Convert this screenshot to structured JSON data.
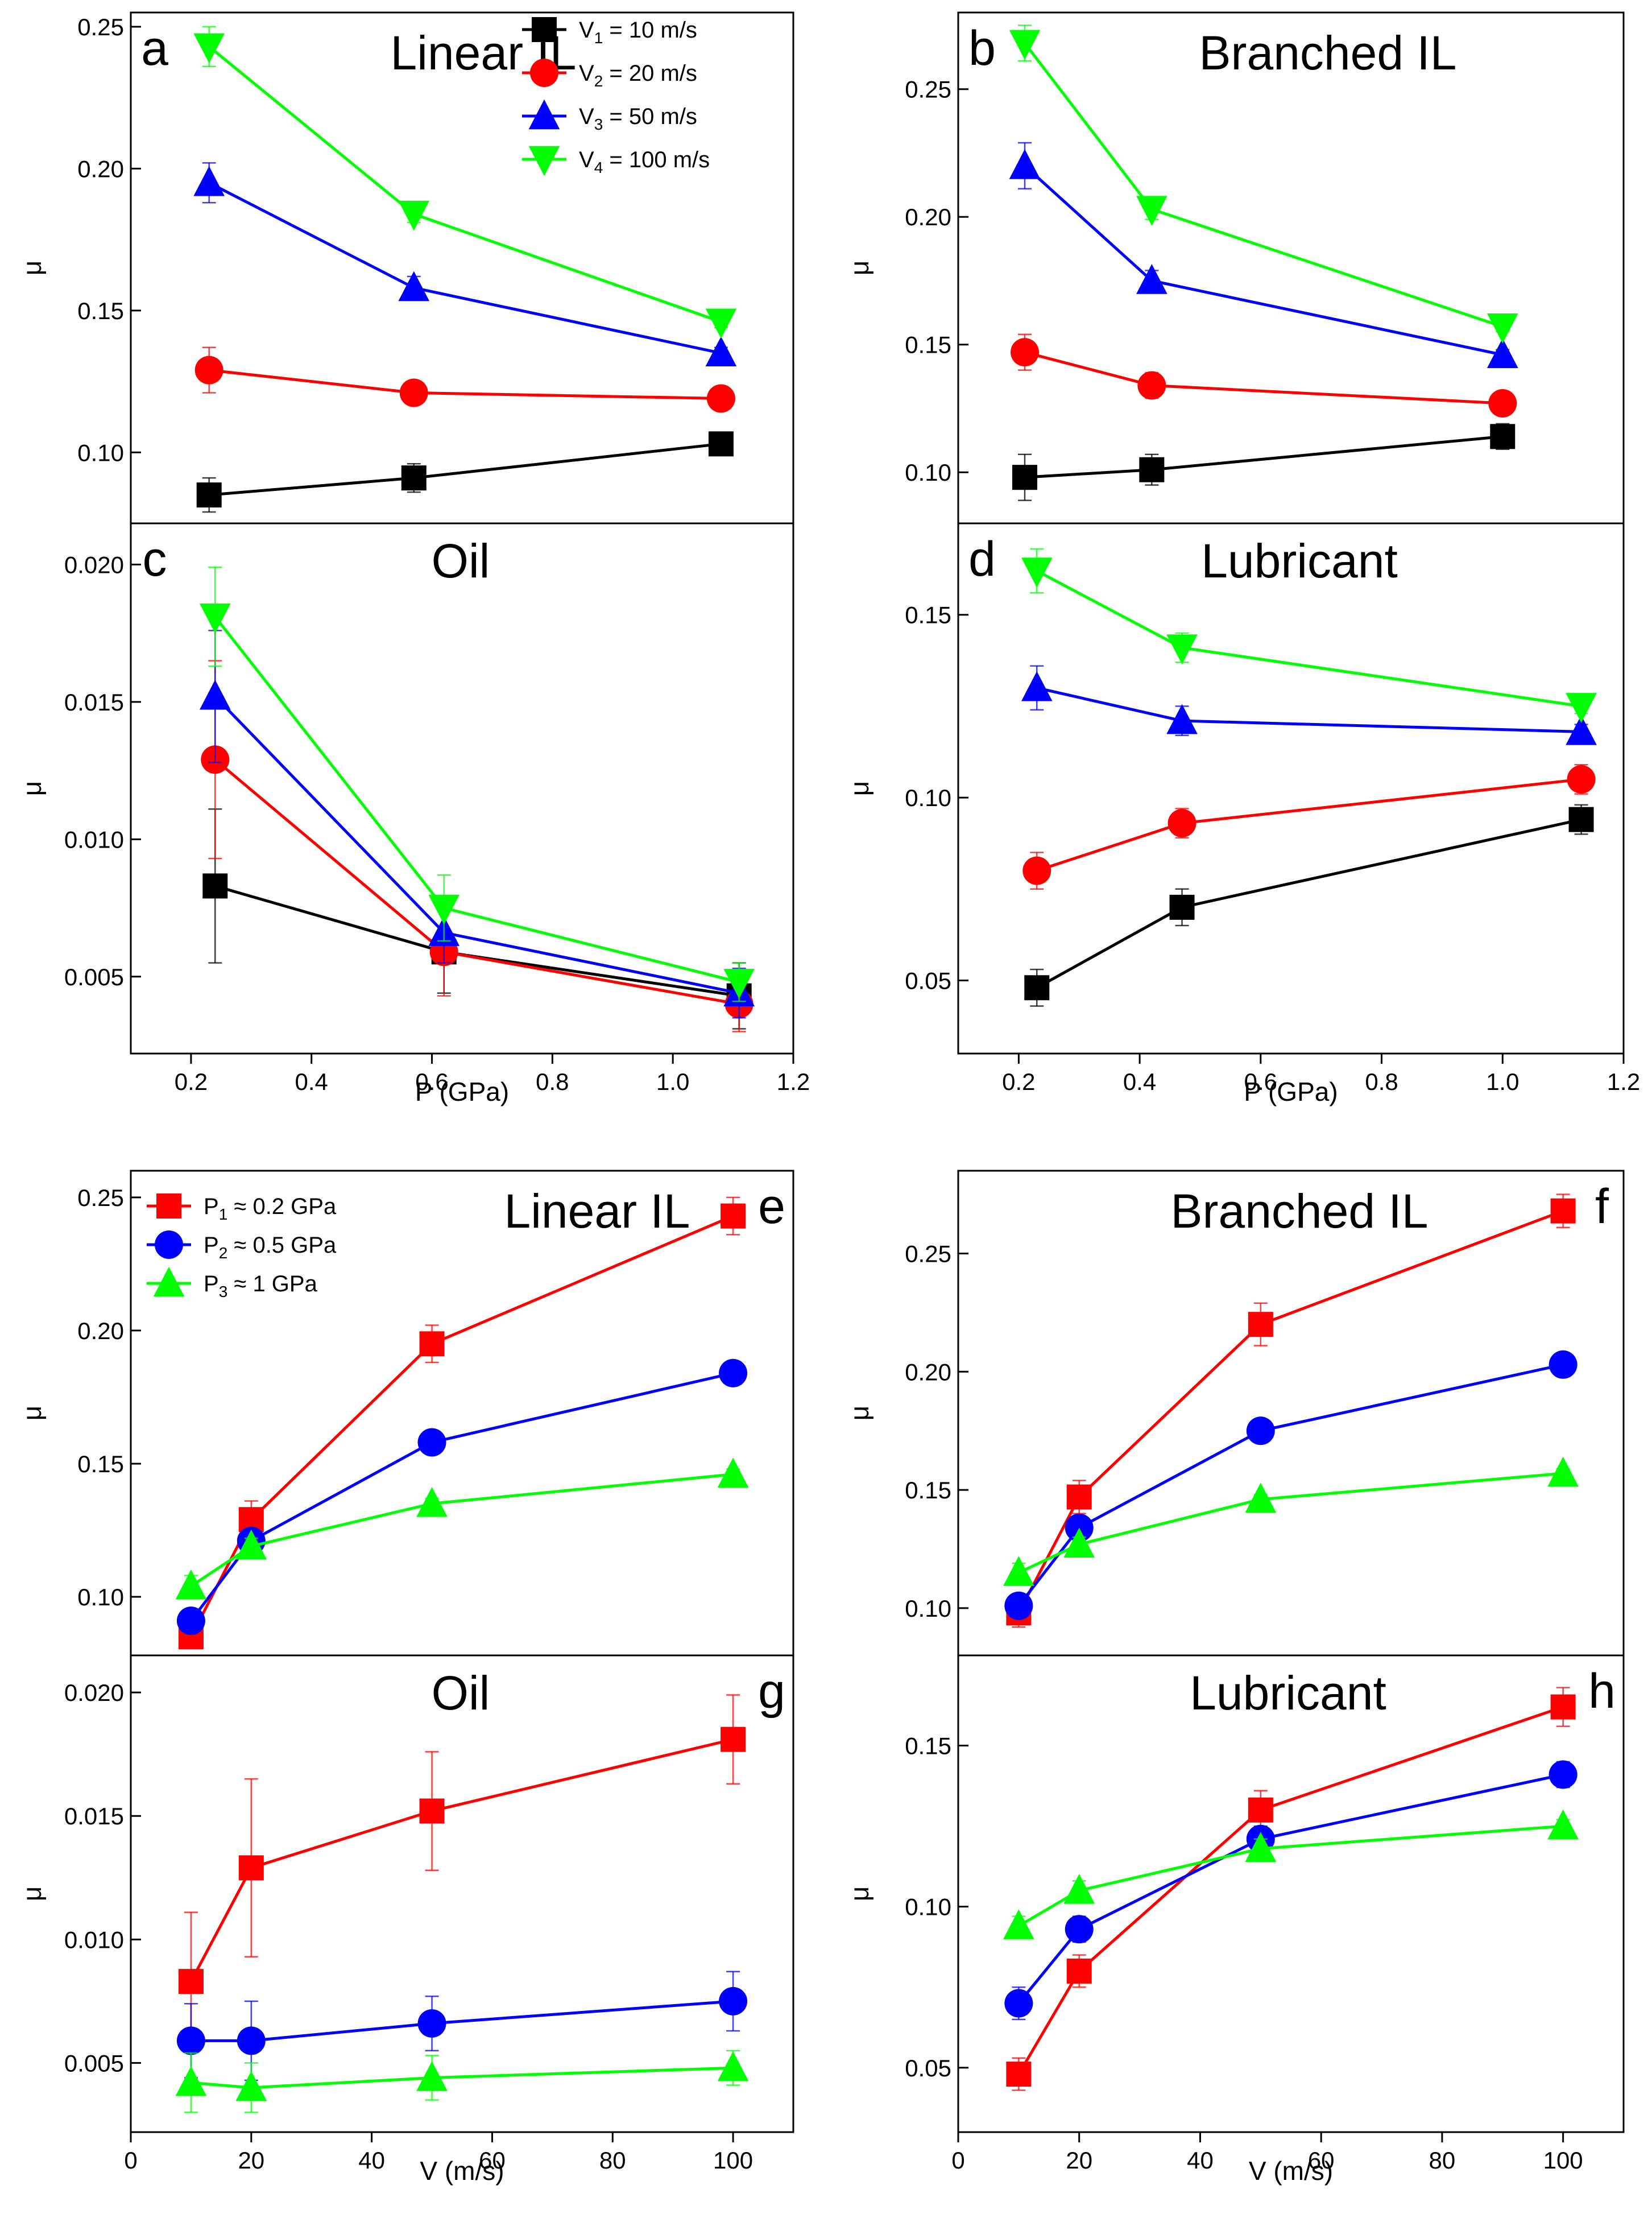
{
  "figure": {
    "mu_symbol": "μ",
    "colors": {
      "black": "#000000",
      "red": "#ff0000",
      "blue": "#0000ff",
      "green": "#00ff00"
    },
    "legend_top": [
      {
        "main": "V",
        "sub": "1",
        "rest": " = 10 m/s",
        "color": "#000000",
        "marker": "square"
      },
      {
        "main": "V",
        "sub": "2",
        "rest": " = 20 m/s",
        "color": "#ff0000",
        "marker": "circle"
      },
      {
        "main": "V",
        "sub": "3",
        "rest": " = 50 m/s",
        "color": "#0000ff",
        "marker": "triangle-up"
      },
      {
        "main": "V",
        "sub": "4",
        "rest": " = 100 m/s",
        "color": "#00ff00",
        "marker": "triangle-down"
      }
    ],
    "legend_bottom": [
      {
        "main": "P",
        "sub": "1",
        "rest": " ≈ 0.2 GPa",
        "color": "#ff0000",
        "marker": "square"
      },
      {
        "main": "P",
        "sub": "2",
        "rest": " ≈ 0.5 GPa",
        "color": "#0000ff",
        "marker": "circle"
      },
      {
        "main": "P",
        "sub": "3",
        "rest": " ≈ 1 GPa",
        "color": "#00ff00",
        "marker": "triangle-up"
      }
    ]
  },
  "chart_data": [
    {
      "panel": "a",
      "title": "Linear IL",
      "type": "line",
      "xlabel": "P (GPa)",
      "ylabel": "μ",
      "xlim": [
        0.1,
        1.2
      ],
      "ylim": [
        0.075,
        0.255
      ],
      "yticks": [
        "0.10",
        "0.15",
        "0.20",
        "0.25"
      ],
      "xticks": [],
      "series": [
        {
          "name": "V1 = 10 m/s",
          "marker": "square",
          "color": "#000000",
          "x": [
            0.23,
            0.57,
            1.08
          ],
          "values": [
            0.085,
            0.091,
            0.103
          ],
          "errors": [
            0.006,
            0.005,
            0.004
          ]
        },
        {
          "name": "V2 = 20 m/s",
          "marker": "circle",
          "color": "#ff0000",
          "x": [
            0.23,
            0.57,
            1.08
          ],
          "values": [
            0.129,
            0.121,
            0.119
          ],
          "errors": [
            0.008,
            0.004,
            0.003
          ]
        },
        {
          "name": "V3 = 50 m/s",
          "marker": "triangle-up",
          "color": "#0000ff",
          "x": [
            0.23,
            0.57,
            1.08
          ],
          "values": [
            0.195,
            0.158,
            0.135
          ],
          "errors": [
            0.007,
            0.004,
            0.002
          ]
        },
        {
          "name": "V4 = 100 m/s",
          "marker": "triangle-down",
          "color": "#00ff00",
          "x": [
            0.23,
            0.57,
            1.08
          ],
          "values": [
            0.243,
            0.184,
            0.146
          ],
          "errors": [
            0.007,
            0.003,
            0.002
          ]
        }
      ]
    },
    {
      "panel": "b",
      "title": "Branched IL",
      "type": "line",
      "xlabel": "P (GPa)",
      "ylabel": "μ",
      "xlim": [
        0.1,
        1.2
      ],
      "ylim": [
        0.08,
        0.28
      ],
      "yticks": [
        "0.10",
        "0.15",
        "0.20",
        "0.25"
      ],
      "xticks": [],
      "series": [
        {
          "name": "V1 = 10 m/s",
          "marker": "square",
          "color": "#000000",
          "x": [
            0.21,
            0.42,
            1.0
          ],
          "values": [
            0.098,
            0.101,
            0.114
          ],
          "errors": [
            0.009,
            0.006,
            0.005
          ]
        },
        {
          "name": "V2 = 20 m/s",
          "marker": "circle",
          "color": "#ff0000",
          "x": [
            0.21,
            0.42,
            1.0
          ],
          "values": [
            0.147,
            0.134,
            0.127
          ],
          "errors": [
            0.007,
            0.005,
            0.003
          ]
        },
        {
          "name": "V3 = 50 m/s",
          "marker": "triangle-up",
          "color": "#0000ff",
          "x": [
            0.21,
            0.42,
            1.0
          ],
          "values": [
            0.22,
            0.175,
            0.146
          ],
          "errors": [
            0.009,
            0.004,
            0.002
          ]
        },
        {
          "name": "V4 = 100 m/s",
          "marker": "triangle-down",
          "color": "#00ff00",
          "x": [
            0.21,
            0.42,
            1.0
          ],
          "values": [
            0.268,
            0.203,
            0.157
          ],
          "errors": [
            0.007,
            0.004,
            0.002
          ]
        }
      ]
    },
    {
      "panel": "c",
      "title": "Oil",
      "type": "line",
      "xlabel": "P (GPa)",
      "ylabel": "μ",
      "xlim": [
        0.1,
        1.2
      ],
      "ylim": [
        0.0022,
        0.0215
      ],
      "yticks": [
        "0.005",
        "0.010",
        "0.015",
        "0.020"
      ],
      "xticks": [
        "0.2",
        "0.4",
        "0.6",
        "0.8",
        "1.0",
        "1.2"
      ],
      "series": [
        {
          "name": "V1 = 10 m/s",
          "marker": "square",
          "color": "#000000",
          "x": [
            0.24,
            0.62,
            1.11
          ],
          "values": [
            0.0083,
            0.0059,
            0.0043
          ],
          "errors": [
            0.0028,
            0.0015,
            0.0012
          ]
        },
        {
          "name": "V2 = 20 m/s",
          "marker": "circle",
          "color": "#ff0000",
          "x": [
            0.24,
            0.62,
            1.11
          ],
          "values": [
            0.0129,
            0.0059,
            0.004
          ],
          "errors": [
            0.0036,
            0.0016,
            0.001
          ]
        },
        {
          "name": "V3 = 50 m/s",
          "marker": "triangle-up",
          "color": "#0000ff",
          "x": [
            0.24,
            0.62,
            1.11
          ],
          "values": [
            0.0152,
            0.0066,
            0.0044
          ],
          "errors": [
            0.0024,
            0.0011,
            0.0009
          ]
        },
        {
          "name": "V4 = 100 m/s",
          "marker": "triangle-down",
          "color": "#00ff00",
          "x": [
            0.24,
            0.62,
            1.11
          ],
          "values": [
            0.0181,
            0.0075,
            0.0048
          ],
          "errors": [
            0.0018,
            0.0012,
            0.0007
          ]
        }
      ]
    },
    {
      "panel": "d",
      "title": "Lubricant",
      "type": "line",
      "xlabel": "P (GPa)",
      "ylabel": "μ",
      "xlim": [
        0.1,
        1.2
      ],
      "ylim": [
        0.03,
        0.175
      ],
      "yticks": [
        "0.05",
        "0.10",
        "0.15"
      ],
      "xticks": [
        "0.2",
        "0.4",
        "0.6",
        "0.8",
        "1.0",
        "1.2"
      ],
      "series": [
        {
          "name": "V1 = 10 m/s",
          "marker": "square",
          "color": "#000000",
          "x": [
            0.23,
            0.47,
            1.13
          ],
          "values": [
            0.048,
            0.07,
            0.094
          ],
          "errors": [
            0.005,
            0.005,
            0.004
          ]
        },
        {
          "name": "V2 = 20 m/s",
          "marker": "circle",
          "color": "#ff0000",
          "x": [
            0.23,
            0.47,
            1.13
          ],
          "values": [
            0.08,
            0.093,
            0.105
          ],
          "errors": [
            0.005,
            0.004,
            0.004
          ]
        },
        {
          "name": "V3 = 50 m/s",
          "marker": "triangle-up",
          "color": "#0000ff",
          "x": [
            0.23,
            0.47,
            1.13
          ],
          "values": [
            0.13,
            0.121,
            0.118
          ],
          "errors": [
            0.006,
            0.004,
            0.002
          ]
        },
        {
          "name": "V4 = 100 m/s",
          "marker": "triangle-down",
          "color": "#00ff00",
          "x": [
            0.23,
            0.47,
            1.13
          ],
          "values": [
            0.162,
            0.141,
            0.125
          ],
          "errors": [
            0.006,
            0.004,
            0.002
          ]
        }
      ]
    },
    {
      "panel": "e",
      "title": "Linear IL",
      "type": "line",
      "xlabel": "V (m/s)",
      "ylabel": "μ",
      "xlim": [
        0,
        110
      ],
      "ylim": [
        0.078,
        0.26
      ],
      "yticks": [
        "0.10",
        "0.15",
        "0.20",
        "0.25"
      ],
      "xticks": [],
      "series": [
        {
          "name": "P1 ≈ 0.2 GPa",
          "marker": "square",
          "color": "#ff0000",
          "x": [
            10,
            20,
            50,
            100
          ],
          "values": [
            0.085,
            0.129,
            0.195,
            0.243
          ],
          "errors": [
            0.004,
            0.007,
            0.007,
            0.007
          ]
        },
        {
          "name": "P2 ≈ 0.5 GPa",
          "marker": "circle",
          "color": "#0000ff",
          "x": [
            10,
            20,
            50,
            100
          ],
          "values": [
            0.091,
            0.121,
            0.158,
            0.184
          ],
          "errors": [
            0.004,
            0.004,
            0.004,
            0.004
          ]
        },
        {
          "name": "P3 ≈ 1 GPa",
          "marker": "triangle-up",
          "color": "#00ff00",
          "x": [
            10,
            20,
            50,
            100
          ],
          "values": [
            0.104,
            0.119,
            0.135,
            0.146
          ],
          "errors": [
            0.004,
            0.003,
            0.002,
            0.002
          ]
        }
      ]
    },
    {
      "panel": "f",
      "title": "Branched IL",
      "type": "line",
      "xlabel": "V (m/s)",
      "ylabel": "μ",
      "xlim": [
        0,
        110
      ],
      "ylim": [
        0.08,
        0.285
      ],
      "yticks": [
        "0.10",
        "0.15",
        "0.20",
        "0.25"
      ],
      "xticks": [],
      "series": [
        {
          "name": "P1 ≈ 0.2 GPa",
          "marker": "square",
          "color": "#ff0000",
          "x": [
            10,
            20,
            50,
            100
          ],
          "values": [
            0.098,
            0.147,
            0.22,
            0.268
          ],
          "errors": [
            0.006,
            0.007,
            0.009,
            0.007
          ]
        },
        {
          "name": "P2 ≈ 0.5 GPa",
          "marker": "circle",
          "color": "#0000ff",
          "x": [
            10,
            20,
            50,
            100
          ],
          "values": [
            0.101,
            0.134,
            0.175,
            0.203
          ],
          "errors": [
            0.005,
            0.005,
            0.004,
            0.004
          ]
        },
        {
          "name": "P3 ≈ 1 GPa",
          "marker": "triangle-up",
          "color": "#00ff00",
          "x": [
            10,
            20,
            50,
            100
          ],
          "values": [
            0.115,
            0.127,
            0.146,
            0.157
          ],
          "errors": [
            0.004,
            0.003,
            0.002,
            0.002
          ]
        }
      ]
    },
    {
      "panel": "g",
      "title": "Oil",
      "type": "line",
      "xlabel": "V (m/s)",
      "ylabel": "μ",
      "xlim": [
        0,
        110
      ],
      "ylim": [
        0.0022,
        0.0215
      ],
      "yticks": [
        "0.005",
        "0.010",
        "0.015",
        "0.020"
      ],
      "xticks": [
        "0",
        "20",
        "40",
        "60",
        "80",
        "100"
      ],
      "series": [
        {
          "name": "P1 ≈ 0.2 GPa",
          "marker": "square",
          "color": "#ff0000",
          "x": [
            10,
            20,
            50,
            100
          ],
          "values": [
            0.0083,
            0.0129,
            0.0152,
            0.0181
          ],
          "errors": [
            0.0028,
            0.0036,
            0.0024,
            0.0018
          ]
        },
        {
          "name": "P2 ≈ 0.5 GPa",
          "marker": "circle",
          "color": "#0000ff",
          "x": [
            10,
            20,
            50,
            100
          ],
          "values": [
            0.0059,
            0.0059,
            0.0066,
            0.0075
          ],
          "errors": [
            0.0015,
            0.0016,
            0.0011,
            0.0012
          ]
        },
        {
          "name": "P3 ≈ 1 GPa",
          "marker": "triangle-up",
          "color": "#00ff00",
          "x": [
            10,
            20,
            50,
            100
          ],
          "values": [
            0.0042,
            0.004,
            0.0044,
            0.0048
          ],
          "errors": [
            0.0012,
            0.001,
            0.0009,
            0.0007
          ]
        }
      ]
    },
    {
      "panel": "h",
      "title": "Lubricant",
      "type": "line",
      "xlabel": "V (m/s)",
      "ylabel": "μ",
      "xlim": [
        0,
        110
      ],
      "ylim": [
        0.03,
        0.178
      ],
      "yticks": [
        "0.05",
        "0.10",
        "0.15"
      ],
      "xticks": [
        "0",
        "20",
        "40",
        "60",
        "80",
        "100"
      ],
      "series": [
        {
          "name": "P1 ≈ 0.2 GPa",
          "marker": "square",
          "color": "#ff0000",
          "x": [
            10,
            20,
            50,
            100
          ],
          "values": [
            0.048,
            0.08,
            0.13,
            0.162
          ],
          "errors": [
            0.005,
            0.005,
            0.006,
            0.006
          ]
        },
        {
          "name": "P2 ≈ 0.5 GPa",
          "marker": "circle",
          "color": "#0000ff",
          "x": [
            10,
            20,
            50,
            100
          ],
          "values": [
            0.07,
            0.093,
            0.121,
            0.141
          ],
          "errors": [
            0.005,
            0.004,
            0.004,
            0.004
          ]
        },
        {
          "name": "P3 ≈ 1 GPa",
          "marker": "triangle-up",
          "color": "#00ff00",
          "x": [
            10,
            20,
            50,
            100
          ],
          "values": [
            0.094,
            0.105,
            0.118,
            0.125
          ],
          "errors": [
            0.003,
            0.003,
            0.003,
            0.002
          ]
        }
      ]
    }
  ]
}
